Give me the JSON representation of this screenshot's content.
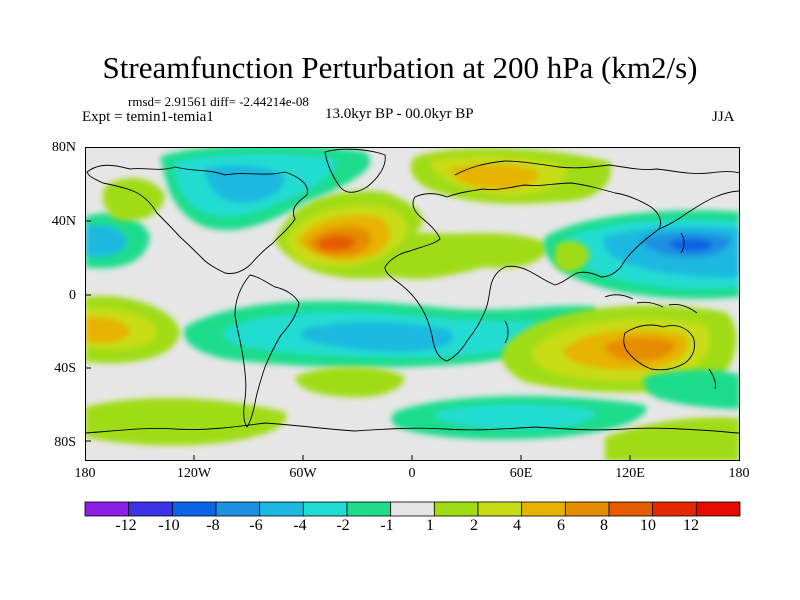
{
  "title": "Streamfunction Perturbation at 200 hPa (km2/s)",
  "stats_line": "rmsd= 2.91561 diff= -2.44214e-08",
  "experiment": "Expt = temin1-temia1",
  "period": "13.0kyr BP - 00.0kyr BP",
  "season": "JJA",
  "lat_labels": [
    "80N",
    "40N",
    "0",
    "40S",
    "80S"
  ],
  "lon_labels": [
    "180",
    "120W",
    "60W",
    "0",
    "60E",
    "120E",
    "180"
  ],
  "colorbar": {
    "labels": [
      "-12",
      "-10",
      "-8",
      "-6",
      "-4",
      "-2",
      "-1",
      "1",
      "2",
      "4",
      "6",
      "8",
      "10",
      "12"
    ],
    "colors": [
      "#8c1fe6",
      "#3c32e6",
      "#0a64e6",
      "#1e90e0",
      "#1cb8e0",
      "#20dcd2",
      "#1edc8c",
      "#e6e6e6",
      "#a0dc14",
      "#c8dc14",
      "#e6b400",
      "#e68c00",
      "#e65a00",
      "#e62800",
      "#e60a00"
    ]
  }
}
